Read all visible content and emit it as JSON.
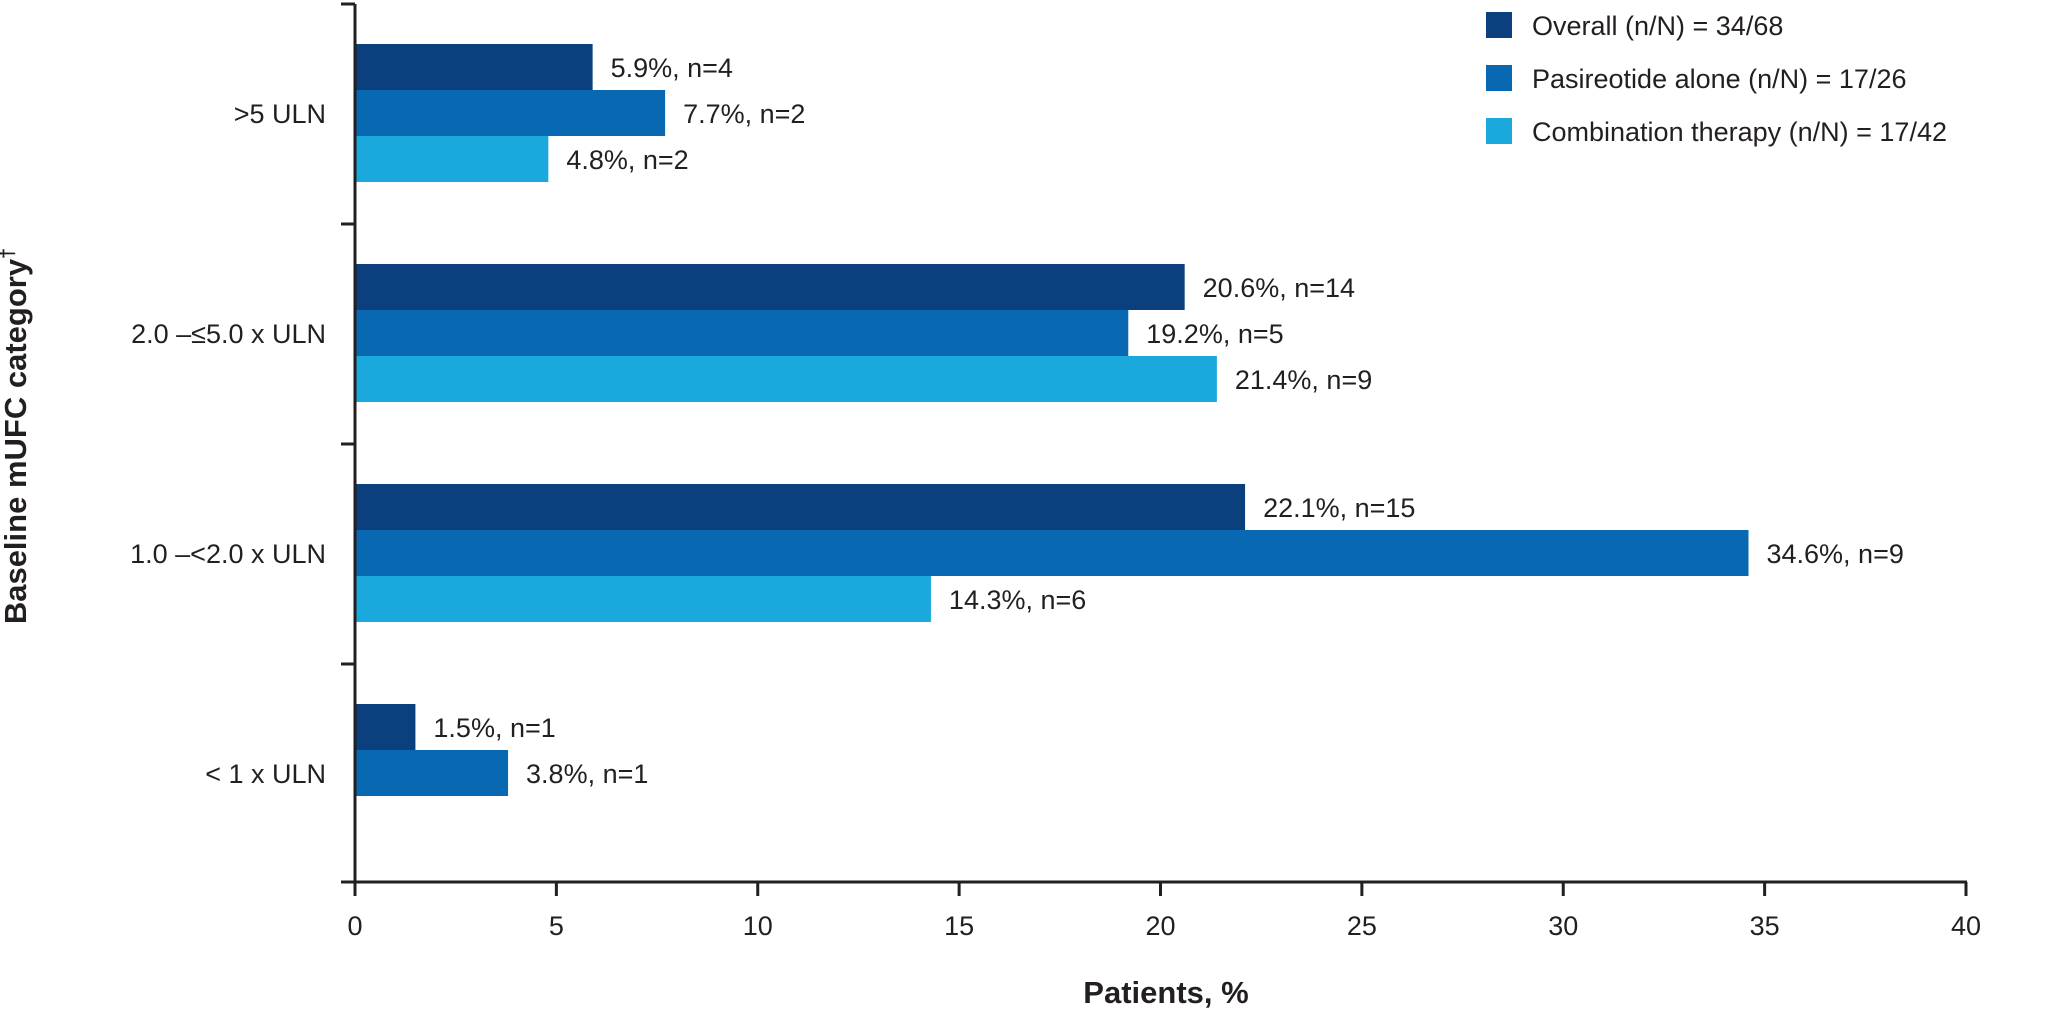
{
  "chart_data": {
    "type": "bar",
    "orientation": "horizontal",
    "title": "",
    "xlabel": "Patients, %",
    "ylabel": "Baseline mUFC category",
    "ylabel_superscript": "†",
    "xlim": [
      0,
      40
    ],
    "xticks": [
      0,
      5,
      10,
      15,
      20,
      25,
      30,
      35,
      40
    ],
    "grid": false,
    "legend_position": "top-right",
    "categories": [
      ">5 ULN",
      "2.0 –≤5.0 x ULN",
      "1.0 –<2.0 x ULN",
      "< 1 x ULN"
    ],
    "series": [
      {
        "name": "Overall (n/N) = 34/68",
        "color": "#0b3f7e",
        "values": [
          5.9,
          20.6,
          22.1,
          1.5
        ],
        "labels": [
          "5.9%, n=4",
          "20.6%, n=14",
          "22.1%, n=15",
          "1.5%, n=1"
        ]
      },
      {
        "name": "Pasireotide alone (n/N) = 17/26",
        "color": "#0869b2",
        "values": [
          7.7,
          19.2,
          34.6,
          3.8
        ],
        "labels": [
          "7.7%, n=2",
          "19.2%, n=5",
          "34.6%, n=9",
          "3.8%, n=1"
        ]
      },
      {
        "name": "Combination therapy (n/N) = 17/42",
        "color": "#1ba8dc",
        "values": [
          4.8,
          21.4,
          14.3,
          null
        ],
        "labels": [
          "4.8%, n=2",
          "21.4%, n=9",
          "14.3%, n=6",
          null
        ]
      }
    ]
  }
}
